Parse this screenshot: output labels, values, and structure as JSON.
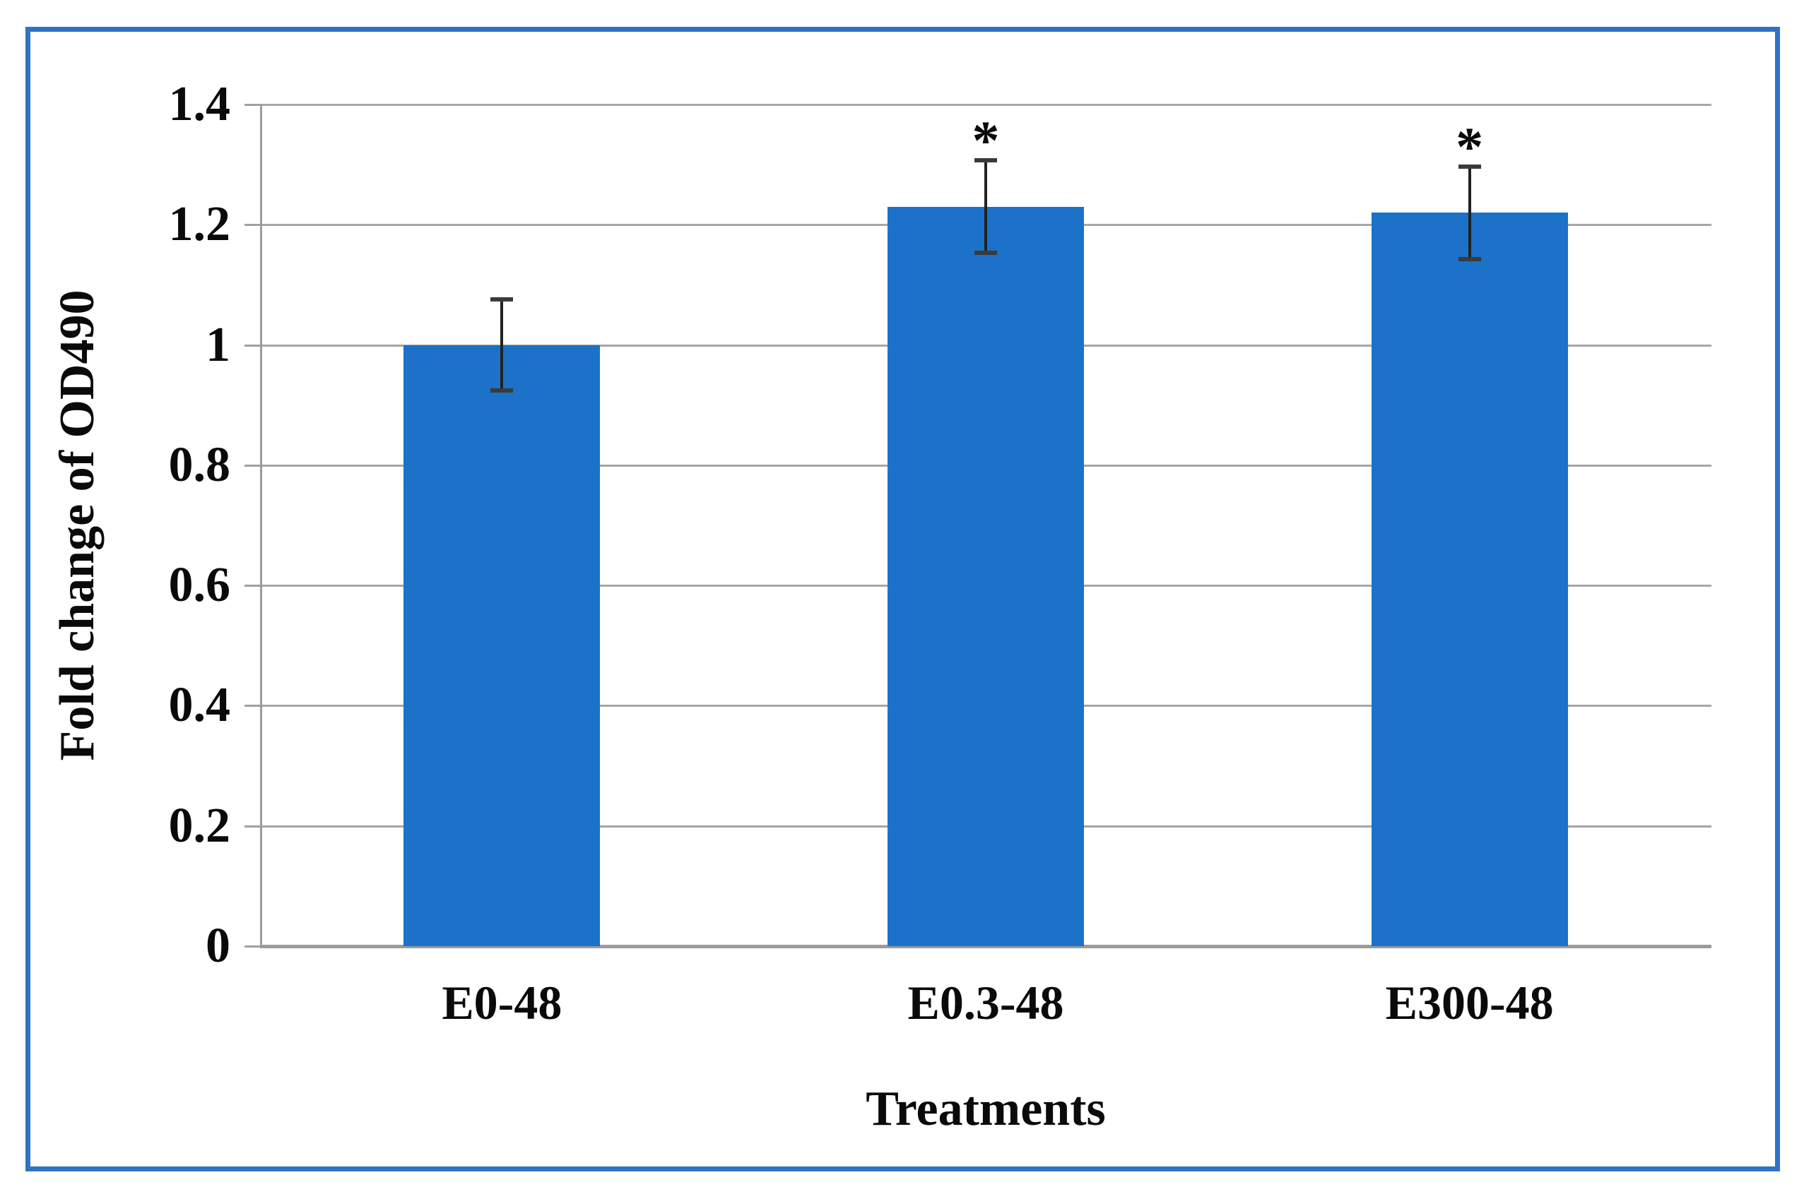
{
  "chart_data": {
    "type": "bar",
    "title": "",
    "categories": [
      "E0-48",
      "E0.3-48",
      "E300-48"
    ],
    "values": [
      1.0,
      1.23,
      1.22
    ],
    "error_bars": [
      0.076,
      0.077,
      0.077
    ],
    "significance_markers": [
      "",
      "*",
      "*"
    ],
    "xlabel": "Treatments",
    "ylabel": "Fold change of OD490",
    "ylim": [
      0,
      1.4
    ],
    "ytick_labels": [
      "0",
      "0.2",
      "0.4",
      "0.6",
      "0.8",
      "1",
      "1.2",
      "1.4"
    ],
    "grid": true,
    "legend_position": "none",
    "bar_color": "#1B72C8",
    "gridline_color": "#A6A6A6",
    "axis_line_color": "#9B9B9B",
    "error_bar_color": "#222222",
    "frame_border_color": "#2E72C6",
    "text_color": "#0A0A0A",
    "background_color": "#FFFFFF"
  }
}
